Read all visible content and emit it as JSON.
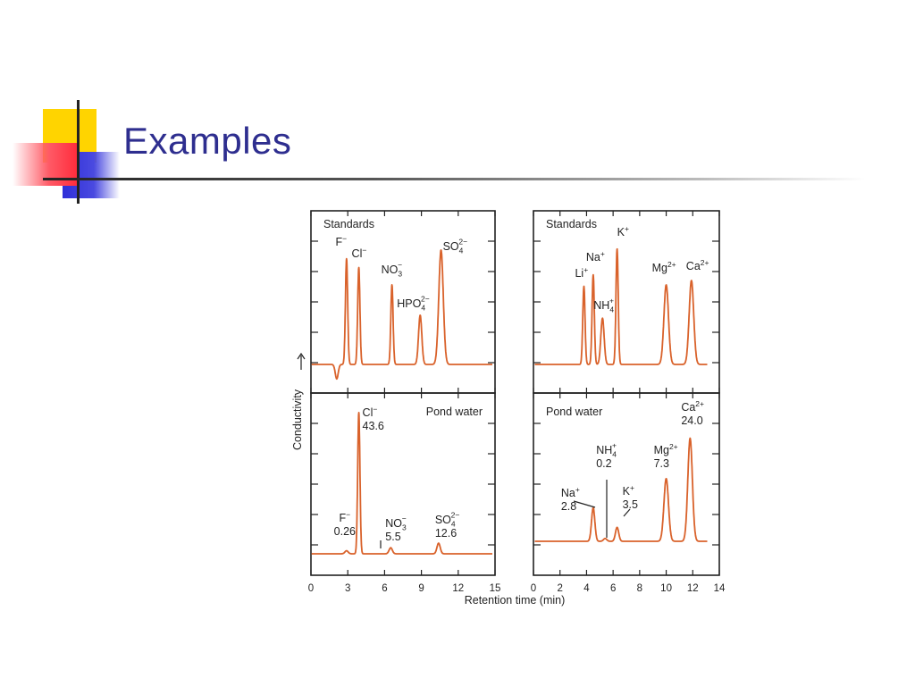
{
  "slide": {
    "title": "Examples"
  },
  "chart_data": [
    {
      "type": "line",
      "label": "Standards",
      "x_ticks": [
        0,
        3,
        6,
        9,
        12,
        15
      ],
      "xlim": [
        0,
        15
      ],
      "peaks": [
        {
          "ion": "F",
          "sup": "−",
          "t": 2.9,
          "h": 0.73
        },
        {
          "ion": "Cl",
          "sup": "−",
          "t": 3.9,
          "h": 0.67
        },
        {
          "ion": "NO",
          "sub": "3",
          "sup": "−",
          "t": 6.6,
          "h": 0.55
        },
        {
          "ion": "HPO",
          "sub": "4",
          "sup": "2−",
          "t": 8.9,
          "h": 0.34
        },
        {
          "ion": "SO",
          "sub": "4",
          "sup": "2−",
          "t": 10.6,
          "h": 0.79
        }
      ]
    },
    {
      "type": "line",
      "label": "Standards",
      "x_ticks": [
        0,
        2,
        4,
        6,
        8,
        10,
        12,
        14
      ],
      "xlim": [
        0,
        14
      ],
      "peaks": [
        {
          "ion": "Li",
          "sup": "+",
          "t": 3.8,
          "h": 0.54
        },
        {
          "ion": "Na",
          "sup": "+",
          "t": 4.5,
          "h": 0.62
        },
        {
          "ion": "NH",
          "sub": "4",
          "sup": "+",
          "t": 5.2,
          "h": 0.32
        },
        {
          "ion": "K",
          "sup": "+",
          "t": 6.3,
          "h": 0.8
        },
        {
          "ion": "Mg",
          "sup": "2+",
          "t": 10.0,
          "h": 0.55
        },
        {
          "ion": "Ca",
          "sup": "2+",
          "t": 11.9,
          "h": 0.58
        }
      ]
    },
    {
      "type": "line",
      "label": "Pond water",
      "x_ticks": [
        0,
        3,
        6,
        9,
        12,
        15
      ],
      "xlim": [
        0,
        15
      ],
      "peaks": [
        {
          "ion": "F",
          "sup": "−",
          "value": "0.26",
          "t": 2.9,
          "h": 0.02
        },
        {
          "ion": "Cl",
          "sup": "−",
          "value": "43.6",
          "t": 3.9,
          "h": 0.93
        },
        {
          "ion": "NO",
          "sub": "3",
          "sup": "−",
          "value": "5.5",
          "t": 6.5,
          "h": 0.04
        },
        {
          "ion": "SO",
          "sub": "4",
          "sup": "2−",
          "value": "12.6",
          "t": 10.4,
          "h": 0.07
        }
      ]
    },
    {
      "type": "line",
      "label": "Pond water",
      "x_ticks": [
        0,
        2,
        4,
        6,
        8,
        10,
        12,
        14
      ],
      "xlim": [
        0,
        14
      ],
      "peaks": [
        {
          "ion": "Na",
          "sup": "+",
          "value": "2.8",
          "t": 4.5,
          "h": 0.24
        },
        {
          "ion": "NH",
          "sub": "4",
          "sup": "+",
          "value": "0.2",
          "t": 5.4,
          "h": 0.02
        },
        {
          "ion": "K",
          "sup": "+",
          "value": "3.5",
          "t": 6.3,
          "h": 0.1
        },
        {
          "ion": "Mg",
          "sup": "2+",
          "value": "7.3",
          "t": 10.0,
          "h": 0.45
        },
        {
          "ion": "Ca",
          "sup": "2+",
          "value": "24.0",
          "t": 11.8,
          "h": 0.74
        }
      ]
    }
  ],
  "axes": {
    "ylabel": "Conductivity",
    "xlabel": "Retention time (min)"
  },
  "colors": {
    "trace": "#d9622b",
    "frame": "#222222"
  }
}
